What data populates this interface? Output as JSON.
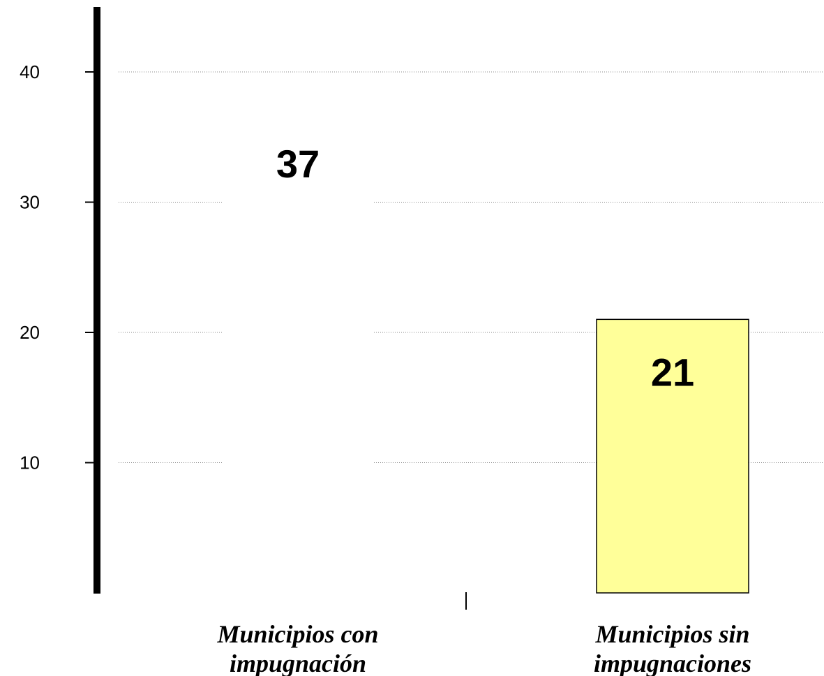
{
  "chart_data": {
    "type": "bar",
    "categories": [
      [
        "Municipios con",
        "impugnación"
      ],
      [
        "Municipios sin",
        "impugnaciones"
      ]
    ],
    "values": [
      37,
      21
    ],
    "data_labels": [
      "37",
      "21"
    ],
    "ylim": [
      0,
      45
    ],
    "yticks": [
      10,
      20,
      30,
      40
    ],
    "ytick_labels": [
      "10",
      "20",
      "30",
      "40"
    ],
    "grid": true,
    "colors": [
      "#ffffff",
      "#ffff99"
    ],
    "title": "",
    "xlabel": "",
    "ylabel": ""
  }
}
